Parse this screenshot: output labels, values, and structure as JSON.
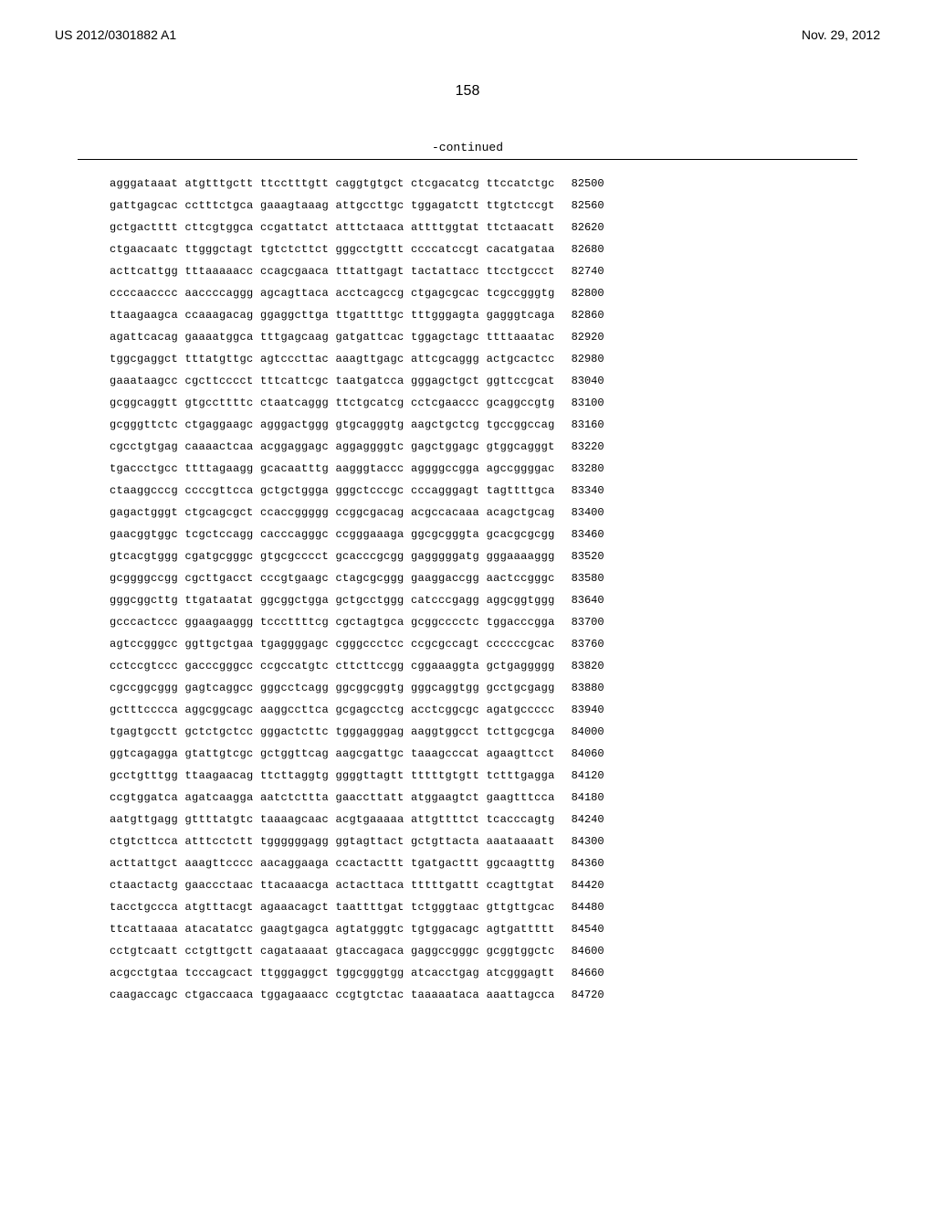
{
  "header": {
    "patent_number": "US 2012/0301882 A1",
    "date": "Nov. 29, 2012"
  },
  "page_number": "158",
  "continued_label": "-continued",
  "sequence": {
    "rows": [
      {
        "g": "agggataaat atgtttgctt ttcctttgtt caggtgtgct ctcgacatcg ttccatctgc",
        "p": "82500"
      },
      {
        "g": "gattgagcac cctttctgca gaaagtaaag attgccttgc tggagatctt ttgtctccgt",
        "p": "82560"
      },
      {
        "g": "gctgactttt cttcgtggca ccgattatct atttctaaca attttggtat ttctaacatt",
        "p": "82620"
      },
      {
        "g": "ctgaacaatc ttgggctagt tgtctcttct gggcctgttt ccccatccgt cacatgataa",
        "p": "82680"
      },
      {
        "g": "acttcattgg tttaaaaacc ccagcgaaca tttattgagt tactattacc ttcctgccct",
        "p": "82740"
      },
      {
        "g": "ccccaacccc aaccccaggg agcagttaca acctcagccg ctgagcgcac tcgccgggtg",
        "p": "82800"
      },
      {
        "g": "ttaagaagca ccaaagacag ggaggcttga ttgattttgc tttgggagta gagggtcaga",
        "p": "82860"
      },
      {
        "g": "agattcacag gaaaatggca tttgagcaag gatgattcac tggagctagc ttttaaatac",
        "p": "82920"
      },
      {
        "g": "tggcgaggct tttatgttgc agtcccttac aaagttgagc attcgcaggg actgcactcc",
        "p": "82980"
      },
      {
        "g": "gaaataagcc cgcttcccct tttcattcgc taatgatcca gggagctgct ggttccgcat",
        "p": "83040"
      },
      {
        "g": "gcggcaggtt gtgccttttc ctaatcaggg ttctgcatcg cctcgaaccc gcaggccgtg",
        "p": "83100"
      },
      {
        "g": "gcgggttctc ctgaggaagc agggactggg gtgcagggtg aagctgctcg tgccggccag",
        "p": "83160"
      },
      {
        "g": "cgcctgtgag caaaactcaa acggaggagc aggaggggtc gagctggagc gtggcagggt",
        "p": "83220"
      },
      {
        "g": "tgaccctgcc ttttagaagg gcacaatttg aagggtaccc aggggccgga agccggggac",
        "p": "83280"
      },
      {
        "g": "ctaaggcccg ccccgttcca gctgctggga gggctcccgc cccagggagt tagttttgca",
        "p": "83340"
      },
      {
        "g": "gagactgggt ctgcagcgct ccaccggggg ccggcgacag acgccacaaa acagctgcag",
        "p": "83400"
      },
      {
        "g": "gaacggtggc tcgctccagg cacccagggc ccgggaaaga ggcgcgggta gcacgcgcgg",
        "p": "83460"
      },
      {
        "g": "gtcacgtggg cgatgcgggc gtgcgcccct gcacccgcgg gagggggatg gggaaaaggg",
        "p": "83520"
      },
      {
        "g": "gcggggccgg cgcttgacct cccgtgaagc ctagcgcggg gaaggaccgg aactccgggc",
        "p": "83580"
      },
      {
        "g": "gggcggcttg ttgataatat ggcggctgga gctgcctggg catcccgagg aggcggtggg",
        "p": "83640"
      },
      {
        "g": "gcccactccc ggaagaaggg tcccttttcg cgctagtgca gcggcccctc tggacccgga",
        "p": "83700"
      },
      {
        "g": "agtccgggcc ggttgctgaa tgaggggagc cgggccctcc ccgcgccagt ccccccgcac",
        "p": "83760"
      },
      {
        "g": "cctccgtccc gacccgggcc ccgccatgtc cttcttccgg cggaaaggta gctgaggggg",
        "p": "83820"
      },
      {
        "g": "cgccggcggg gagtcaggcc gggcctcagg ggcggcggtg gggcaggtgg gcctgcgagg",
        "p": "83880"
      },
      {
        "g": "gctttcccca aggcggcagc aaggccttca gcgagcctcg acctcggcgc agatgccccc",
        "p": "83940"
      },
      {
        "g": "tgagtgcctt gctctgctcc gggactcttc tgggagggag aaggtggcct tcttgcgcga",
        "p": "84000"
      },
      {
        "g": "ggtcagagga gtattgtcgc gctggttcag aagcgattgc taaagcccat agaagttcct",
        "p": "84060"
      },
      {
        "g": "gcctgtttgg ttaagaacag ttcttaggtg ggggttagtt tttttgtgtt tctttgagga",
        "p": "84120"
      },
      {
        "g": "ccgtggatca agatcaagga aatctcttta gaaccttatt atggaagtct gaagtttcca",
        "p": "84180"
      },
      {
        "g": "aatgttgagg gttttatgtc taaaagcaac acgtgaaaaa attgttttct tcacccagtg",
        "p": "84240"
      },
      {
        "g": "ctgtcttcca atttcctctt tggggggagg ggtagttact gctgttacta aaataaaatt",
        "p": "84300"
      },
      {
        "g": "acttattgct aaagttcccc aacaggaaga ccactacttt tgatgacttt ggcaagtttg",
        "p": "84360"
      },
      {
        "g": "ctaactactg gaaccctaac ttacaaacga actacttaca tttttgattt ccagttgtat",
        "p": "84420"
      },
      {
        "g": "tacctgccca atgtttacgt agaaacagct taattttgat tctgggtaac gttgttgcac",
        "p": "84480"
      },
      {
        "g": "ttcattaaaa atacatatcc gaagtgagca agtatgggtc tgtggacagc agtgattttt",
        "p": "84540"
      },
      {
        "g": "cctgtcaatt cctgttgctt cagataaaat gtaccagaca gaggccgggc gcggtggctc",
        "p": "84600"
      },
      {
        "g": "acgcctgtaa tcccagcact ttgggaggct tggcgggtgg atcacctgag atcgggagtt",
        "p": "84660"
      },
      {
        "g": "caagaccagc ctgaccaaca tggagaaacc ccgtgtctac taaaaataca aaattagcca",
        "p": "84720"
      }
    ]
  }
}
